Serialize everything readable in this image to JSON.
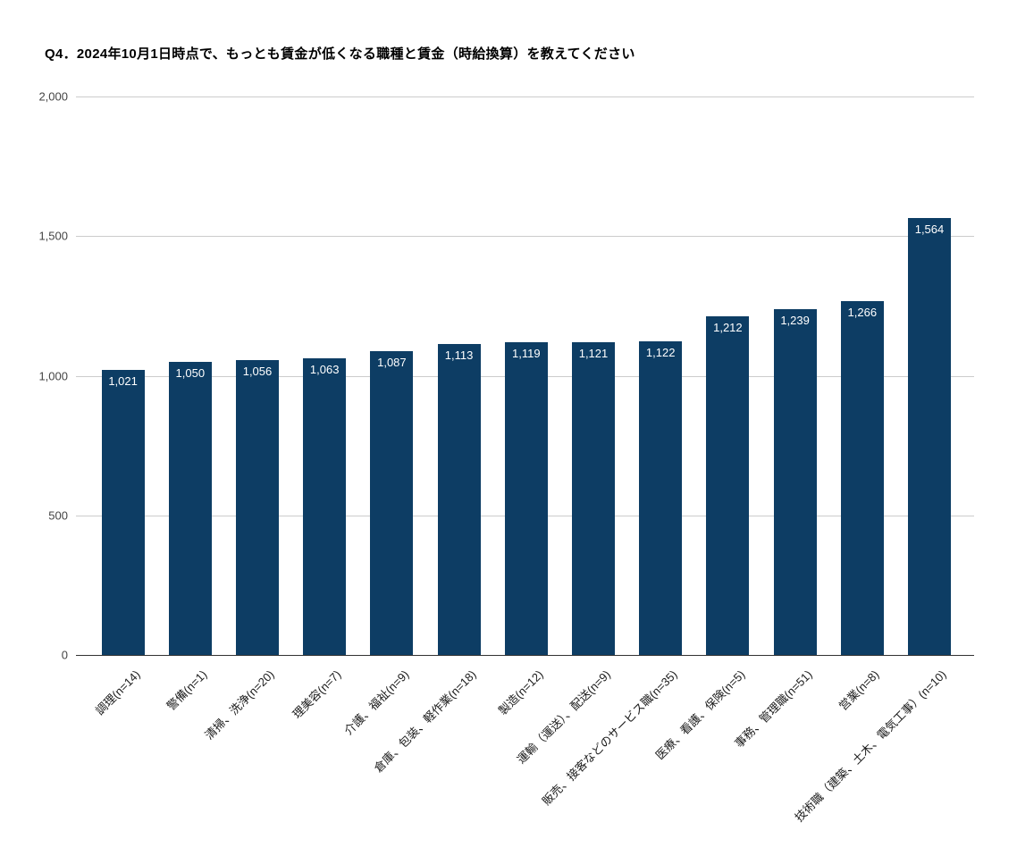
{
  "title": "Q4．2024年10月1日時点で、もっとも賃金が低くなる職種と賃金（時給換算）を教えてください",
  "colors": {
    "bar": "#0d3d64",
    "grid": "#cccccc",
    "baseline": "#333333",
    "title_text": "#000000",
    "y_axis_label": "#444444",
    "x_axis_label": "#1a1a1a",
    "value_label": "#ffffff",
    "background": "#ffffff"
  },
  "chart_data": {
    "type": "bar",
    "title": "Q4．2024年10月1日時点で、もっとも賃金が低くなる職種と賃金（時給換算）を教えてください",
    "categories": [
      "調理(n=14)",
      "警備(n=1)",
      "清掃、洗浄(n=20)",
      "理美容(n=7)",
      "介護、福祉(n=9)",
      "倉庫、包装、軽作業(n=18)",
      "製造(n=12)",
      "運輸（運送）、配送(n=9)",
      "販売、接客などのサービス職(n=35)",
      "医療、看護、保険(n=5)",
      "事務、管理職(n=51)",
      "営業(n=8)",
      "技術職（建築、土木、電気工事）(n=10)"
    ],
    "values": [
      1021,
      1050,
      1056,
      1063,
      1087,
      1113,
      1119,
      1121,
      1122,
      1212,
      1239,
      1266,
      1564
    ],
    "value_labels": [
      "1,021",
      "1,050",
      "1,056",
      "1,063",
      "1,087",
      "1,113",
      "1,119",
      "1,121",
      "1,122",
      "1,212",
      "1,239",
      "1,266",
      "1,564"
    ],
    "xlabel": "",
    "ylabel": "",
    "ylim": [
      0,
      2000
    ],
    "yticks": [
      0,
      500,
      1000,
      1500,
      2000
    ],
    "ytick_labels": [
      "0",
      "500",
      "1,000",
      "1,500",
      "2,000"
    ],
    "grid": true,
    "legend": "none",
    "x_label_rotation_deg": -45
  }
}
